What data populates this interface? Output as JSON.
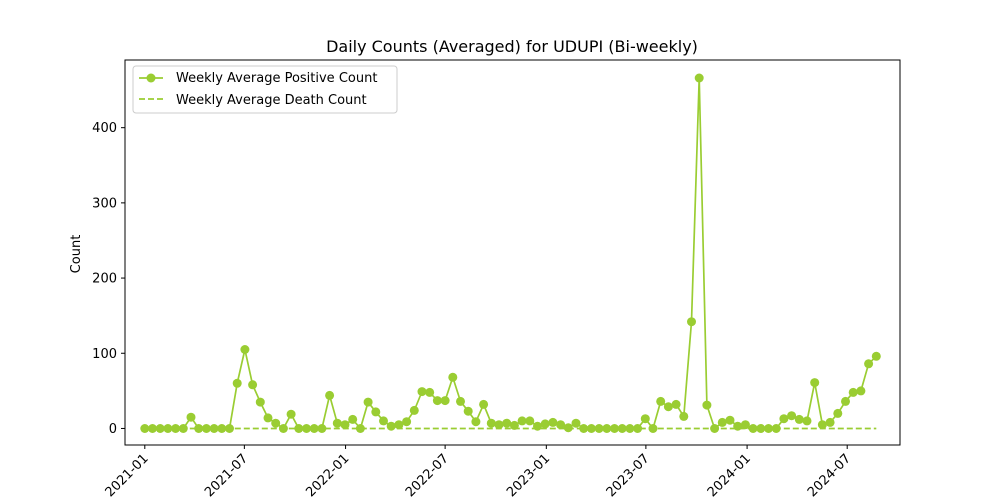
{
  "chart_data": {
    "type": "line",
    "title": "Daily Counts (Averaged) for UDUPI (Bi-weekly)",
    "xlabel": "",
    "ylabel": "Count",
    "xlim": [
      "2020-11-26",
      "2024-10-05"
    ],
    "ylim": [
      -22,
      490
    ],
    "x_ticks": [
      {
        "date": "2021-01-01",
        "label": "2021-01"
      },
      {
        "date": "2021-07-01",
        "label": "2021-07"
      },
      {
        "date": "2022-01-01",
        "label": "2022-01"
      },
      {
        "date": "2022-07-01",
        "label": "2022-07"
      },
      {
        "date": "2023-01-01",
        "label": "2023-01"
      },
      {
        "date": "2023-07-01",
        "label": "2023-07"
      },
      {
        "date": "2024-01-01",
        "label": "2024-01"
      },
      {
        "date": "2024-07-01",
        "label": "2024-07"
      }
    ],
    "y_ticks": [
      0,
      100,
      200,
      300,
      400
    ],
    "grid": false,
    "legend_position": "upper-left",
    "line_color": "#9acd32",
    "x": [
      "2021-01-01",
      "2021-01-15",
      "2021-01-29",
      "2021-02-12",
      "2021-02-26",
      "2021-03-12",
      "2021-03-26",
      "2021-04-09",
      "2021-04-23",
      "2021-05-07",
      "2021-05-21",
      "2021-06-04",
      "2021-06-18",
      "2021-07-02",
      "2021-07-16",
      "2021-07-30",
      "2021-08-13",
      "2021-08-27",
      "2021-09-10",
      "2021-09-24",
      "2021-10-08",
      "2021-10-22",
      "2021-11-05",
      "2021-11-19",
      "2021-12-03",
      "2021-12-17",
      "2021-12-31",
      "2022-01-14",
      "2022-01-28",
      "2022-02-11",
      "2022-02-25",
      "2022-03-11",
      "2022-03-25",
      "2022-04-08",
      "2022-04-22",
      "2022-05-06",
      "2022-05-20",
      "2022-06-03",
      "2022-06-17",
      "2022-07-01",
      "2022-07-15",
      "2022-07-29",
      "2022-08-12",
      "2022-08-26",
      "2022-09-09",
      "2022-09-23",
      "2022-10-07",
      "2022-10-21",
      "2022-11-04",
      "2022-11-18",
      "2022-12-02",
      "2022-12-16",
      "2022-12-30",
      "2023-01-13",
      "2023-01-27",
      "2023-02-10",
      "2023-02-24",
      "2023-03-10",
      "2023-03-24",
      "2023-04-07",
      "2023-04-21",
      "2023-05-05",
      "2023-05-19",
      "2023-06-02",
      "2023-06-16",
      "2023-06-30",
      "2023-07-14",
      "2023-07-28",
      "2023-08-11",
      "2023-08-25",
      "2023-09-08",
      "2023-09-22",
      "2023-10-06",
      "2023-10-20",
      "2023-11-03",
      "2023-11-17",
      "2023-12-01",
      "2023-12-15",
      "2023-12-29",
      "2024-01-12",
      "2024-01-26",
      "2024-02-09",
      "2024-02-23",
      "2024-03-08",
      "2024-03-22",
      "2024-04-05",
      "2024-04-19",
      "2024-05-03",
      "2024-05-17",
      "2024-05-31",
      "2024-06-14",
      "2024-06-28",
      "2024-07-12",
      "2024-07-26",
      "2024-08-09",
      "2024-08-23"
    ],
    "series": [
      {
        "name": "Weekly Average Positive Count",
        "style": "solid-marker",
        "values": [
          0,
          0,
          0,
          0,
          0,
          0,
          15,
          0,
          0,
          0,
          0,
          0,
          60,
          105,
          58,
          35,
          14,
          7,
          0,
          19,
          0,
          0,
          0,
          0,
          44,
          7,
          5,
          12,
          0,
          35,
          22,
          10,
          3,
          5,
          9,
          24,
          49,
          48,
          37,
          37,
          68,
          36,
          23,
          9,
          32,
          7,
          5,
          7,
          4,
          10,
          10,
          3,
          6,
          8,
          5,
          1,
          7,
          0,
          0,
          0,
          0,
          0,
          0,
          0,
          0,
          13,
          0,
          36,
          29,
          32,
          16,
          142,
          466,
          31,
          0,
          8,
          11,
          3,
          5,
          0,
          0,
          0,
          0,
          13,
          17,
          12,
          10,
          61,
          5,
          8,
          20,
          36,
          48,
          50,
          86,
          96
        ]
      },
      {
        "name": "Weekly Average Death Count",
        "style": "dashed",
        "values": [
          0,
          0,
          0,
          0,
          0,
          0,
          0,
          0,
          0,
          0,
          0,
          0,
          0,
          0,
          0,
          0,
          0,
          0,
          0,
          0,
          0,
          0,
          0,
          0,
          0,
          0,
          0,
          0,
          0,
          0,
          0,
          0,
          0,
          0,
          0,
          0,
          0,
          0,
          0,
          0,
          0,
          0,
          0,
          0,
          0,
          0,
          0,
          0,
          0,
          0,
          0,
          0,
          0,
          0,
          0,
          0,
          0,
          0,
          0,
          0,
          0,
          0,
          0,
          0,
          0,
          0,
          0,
          0,
          0,
          0,
          0,
          0,
          0,
          0,
          0,
          0,
          0,
          0,
          0,
          0,
          0,
          0,
          0,
          0,
          0,
          0,
          0,
          0,
          0,
          0,
          0,
          0,
          0,
          0,
          0,
          0
        ]
      }
    ]
  }
}
